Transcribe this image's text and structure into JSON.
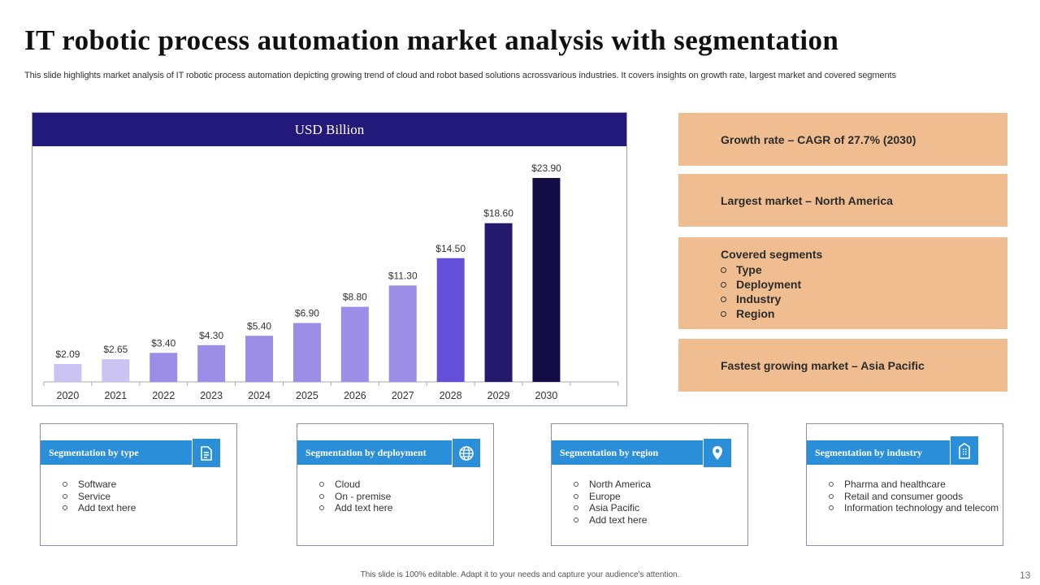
{
  "title": "IT robotic process automation market analysis with segmentation",
  "subtitle": "This slide highlights market analysis of IT robotic process automation depicting growing trend of cloud and robot based solutions acrossvarious industries. It covers insights on growth rate, largest market and covered segments",
  "chart_data": {
    "type": "bar",
    "title": "USD Billion",
    "categories": [
      "2020",
      "2021",
      "2022",
      "2023",
      "2024",
      "2025",
      "2026",
      "2027",
      "2028",
      "2029",
      "2030"
    ],
    "values": [
      2.09,
      2.65,
      3.4,
      4.3,
      5.4,
      6.9,
      8.8,
      11.3,
      14.5,
      18.6,
      23.9
    ],
    "labels": [
      "$2.09",
      "$2.65",
      "$3.40",
      "$4.30",
      "$5.40",
      "$6.90",
      "$8.80",
      "$11.30",
      "$14.50",
      "$18.60",
      "$23.90"
    ],
    "colors": [
      "#cbc4f3",
      "#cbc4f3",
      "#9c8de6",
      "#9c8de6",
      "#9c8de6",
      "#9c8de6",
      "#9c8de6",
      "#9c8de6",
      "#644fd8",
      "#23196d",
      "#120d45"
    ],
    "xlabel": "",
    "ylabel": "",
    "ylim": [
      0,
      26
    ],
    "grid": false,
    "legend": "none"
  },
  "info": {
    "growth": "Growth rate – CAGR of 27.7% (2030)",
    "largest": "Largest market – North America",
    "covered_title": "Covered segments",
    "covered_items": [
      "Type",
      "Deployment",
      "Industry",
      "Region"
    ],
    "fastest": "Fastest growing market – Asia Pacific"
  },
  "segments": [
    {
      "title": "Segmentation  by  type",
      "icon": "document-icon",
      "items": [
        "Software",
        "Service",
        "Add text here"
      ]
    },
    {
      "title": "Segmentation  by  deployment",
      "icon": "globe-icon",
      "items": [
        "Cloud",
        "On - premise",
        "Add text here"
      ]
    },
    {
      "title": "Segmentation  by  region",
      "icon": "location-pin-icon",
      "items": [
        "North America",
        "Europe",
        "Asia Pacific",
        "Add text here"
      ]
    },
    {
      "title": "Segmentation  by  industry",
      "icon": "building-icon",
      "items": [
        "Pharma and healthcare",
        "Retail and consumer goods",
        "Information technology and telecom"
      ]
    }
  ],
  "colors": {
    "header": "#23197a",
    "info_bg": "#efbd8f",
    "segment_blue": "#2a8fd8"
  },
  "footer": "This slide is 100% editable. Adapt it to your needs and capture your audience's attention.",
  "page_number": "13"
}
